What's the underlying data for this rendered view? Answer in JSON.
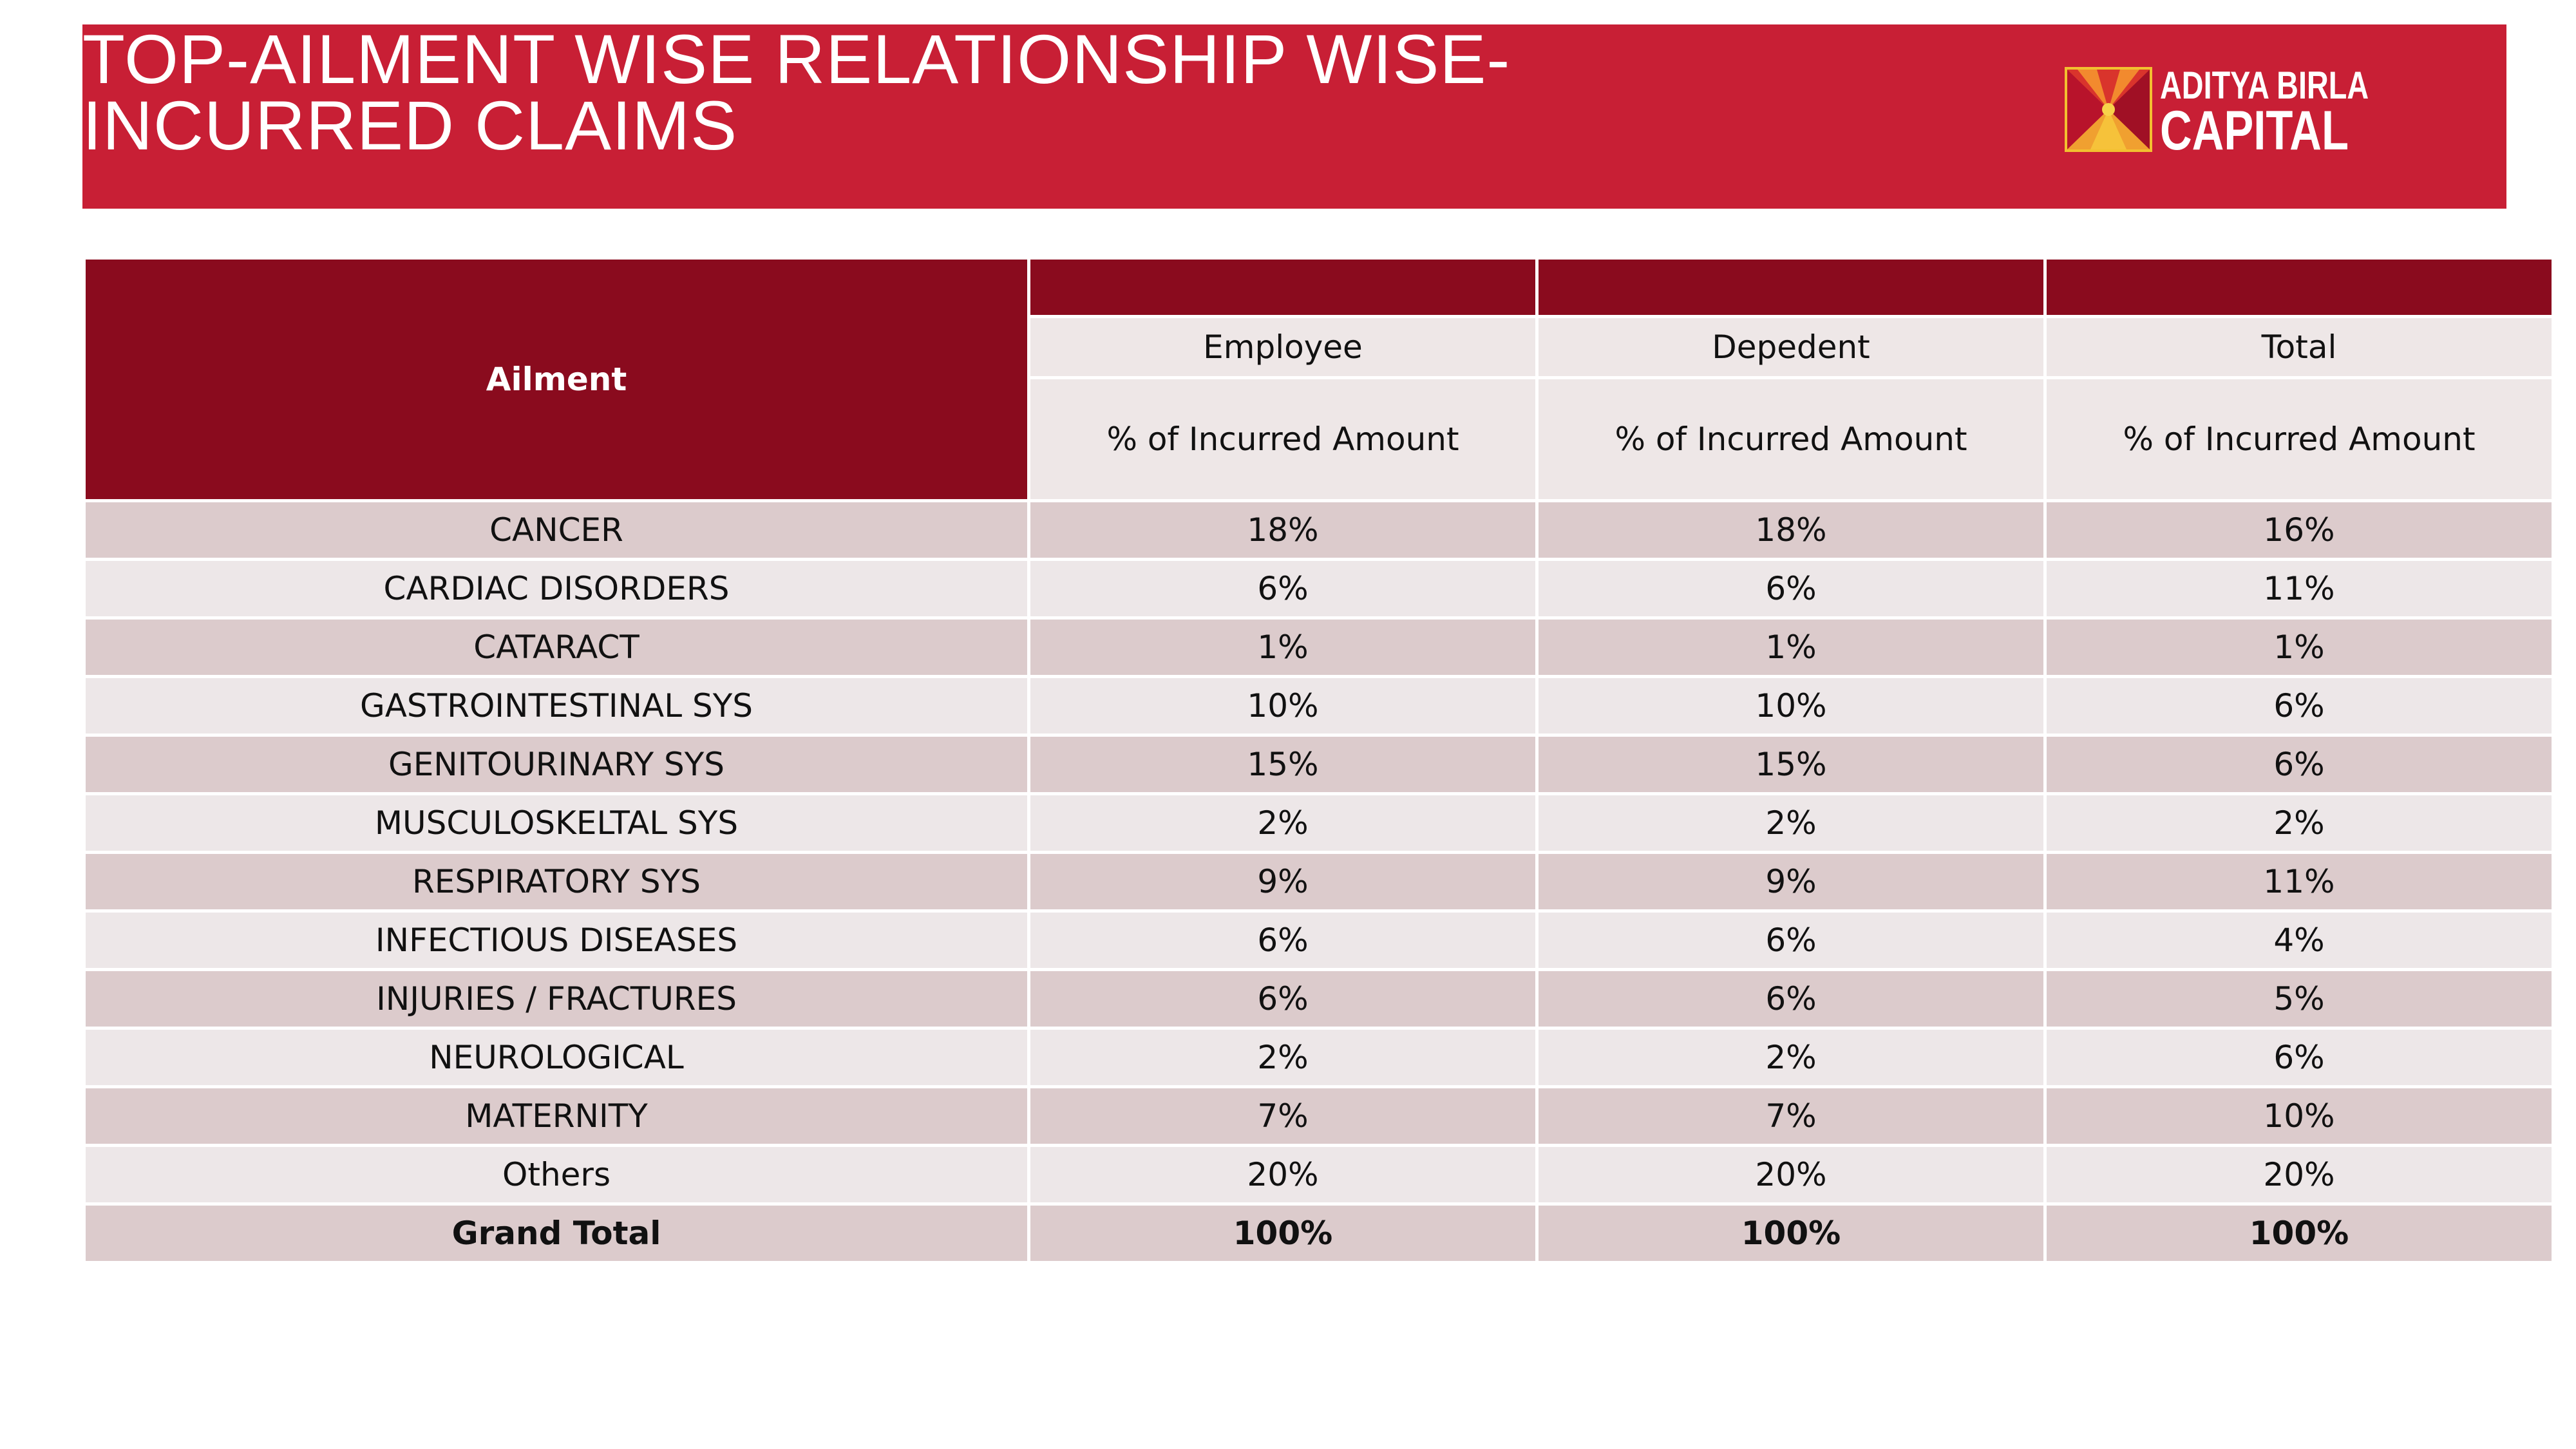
{
  "header": {
    "title_line1": "TOP-AILMENT WISE RELATIONSHIP WISE-",
    "title_line2": "INCURRED CLAIMS",
    "banner_color": "#c81f35",
    "logo": {
      "line1": "ADITYA BIRLA",
      "line2": "CAPITAL",
      "icon": "aditya-birla-sun-logo-icon"
    }
  },
  "table": {
    "ailment_header": "Ailment",
    "groups": [
      "Employee",
      "Depedent",
      "Total"
    ],
    "metric_label": "% of Incurred Amount",
    "header_color": "#8a0b1e",
    "rows": [
      {
        "ailment": "CANCER",
        "employee": "18%",
        "dependent": "18%",
        "total": "16%"
      },
      {
        "ailment": "CARDIAC DISORDERS",
        "employee": "6%",
        "dependent": "6%",
        "total": "11%"
      },
      {
        "ailment": "CATARACT",
        "employee": "1%",
        "dependent": "1%",
        "total": "1%"
      },
      {
        "ailment": "GASTROINTESTINAL SYS",
        "employee": "10%",
        "dependent": "10%",
        "total": "6%"
      },
      {
        "ailment": "GENITOURINARY SYS",
        "employee": "15%",
        "dependent": "15%",
        "total": "6%"
      },
      {
        "ailment": "MUSCULOSKELTAL SYS",
        "employee": "2%",
        "dependent": "2%",
        "total": "2%"
      },
      {
        "ailment": "RESPIRATORY SYS",
        "employee": "9%",
        "dependent": "9%",
        "total": "11%"
      },
      {
        "ailment": "INFECTIOUS DISEASES",
        "employee": "6%",
        "dependent": "6%",
        "total": "4%"
      },
      {
        "ailment": "INJURIES / FRACTURES",
        "employee": "6%",
        "dependent": "6%",
        "total": "5%"
      },
      {
        "ailment": "NEUROLOGICAL",
        "employee": "2%",
        "dependent": "2%",
        "total": "6%"
      },
      {
        "ailment": "MATERNITY",
        "employee": "7%",
        "dependent": "7%",
        "total": "10%"
      },
      {
        "ailment": "Others",
        "employee": "20%",
        "dependent": "20%",
        "total": "20%"
      }
    ],
    "grand_total": {
      "ailment": "Grand Total",
      "employee": "100%",
      "dependent": "100%",
      "total": "100%"
    }
  }
}
